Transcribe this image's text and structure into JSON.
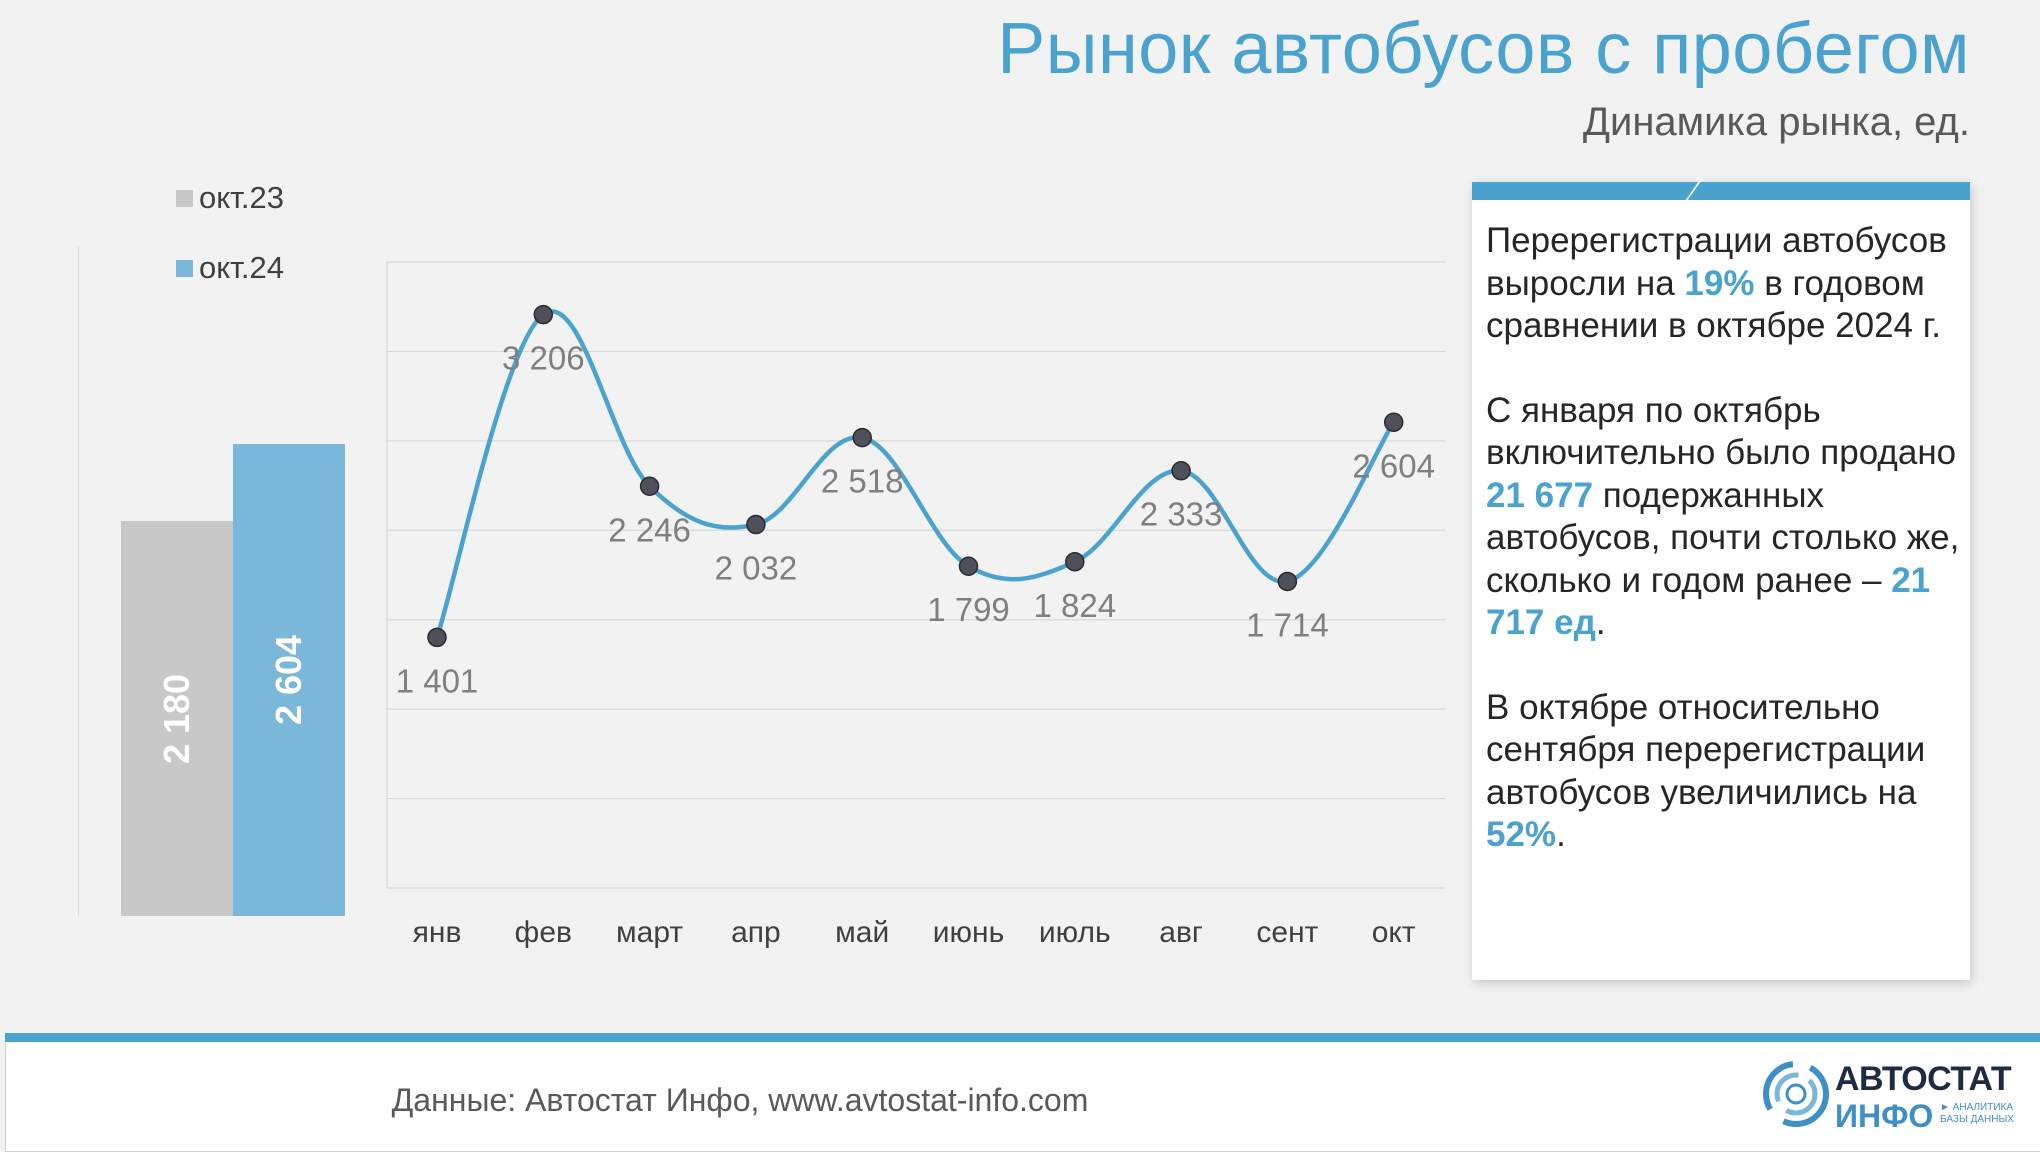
{
  "header": {
    "title": "Рынок автобусов с пробегом",
    "subtitle": "Динамика рынка, ед."
  },
  "chart_data": [
    {
      "type": "bar",
      "categories": [
        "окт.23",
        "окт.24"
      ],
      "values": [
        2180,
        2604
      ],
      "value_labels": [
        "2 180",
        "2 604"
      ],
      "colors": [
        "#c8c8c8",
        "#7ab7d8"
      ],
      "legend": [
        "окт.23",
        "окт.24"
      ],
      "legend_placement": "top-left",
      "ylim": [
        0,
        3700
      ]
    },
    {
      "type": "line",
      "categories": [
        "янв",
        "фев",
        "март",
        "апр",
        "май",
        "июнь",
        "июль",
        "авг",
        "сент",
        "окт"
      ],
      "values": [
        1401,
        3206,
        2246,
        2032,
        2518,
        1799,
        1824,
        2333,
        1714,
        2604
      ],
      "value_labels": [
        "1 401",
        "3 206",
        "2 246",
        "2 032",
        "2 518",
        "1 799",
        "1 824",
        "2 333",
        "1 714",
        "2 604"
      ],
      "line_color": "#4aa3cf",
      "marker_color": "#50505a",
      "grid": true,
      "ylim": [
        0,
        3500
      ]
    }
  ],
  "info_box": {
    "p1": [
      "Перерегистрации автобусов выросли на ",
      "19%",
      " в годовом сравнении в октябре 2024 г."
    ],
    "p2": [
      "С января по октябрь включительно было продано ",
      "21 677",
      " подержанных автобусов, почти столько же, сколько и годом ранее – ",
      "21 717 ед",
      "."
    ],
    "p3": [
      "В октябре относительно сентября перерегистрации автобусов увеличились на ",
      "52%",
      "."
    ]
  },
  "footer": {
    "source": "Данные: Автостат Инфо, www.avtostat-info.com",
    "logo_top": "АВТОСТАТ",
    "logo_bottom": "ИНФО",
    "logo_sub": "► АНАЛИТИКА БАЗЫ ДАННЫХ"
  },
  "colors": {
    "accent": "#4aa3cf",
    "bar_2023": "#c8c8c8",
    "bar_2024": "#7ab7d8"
  }
}
